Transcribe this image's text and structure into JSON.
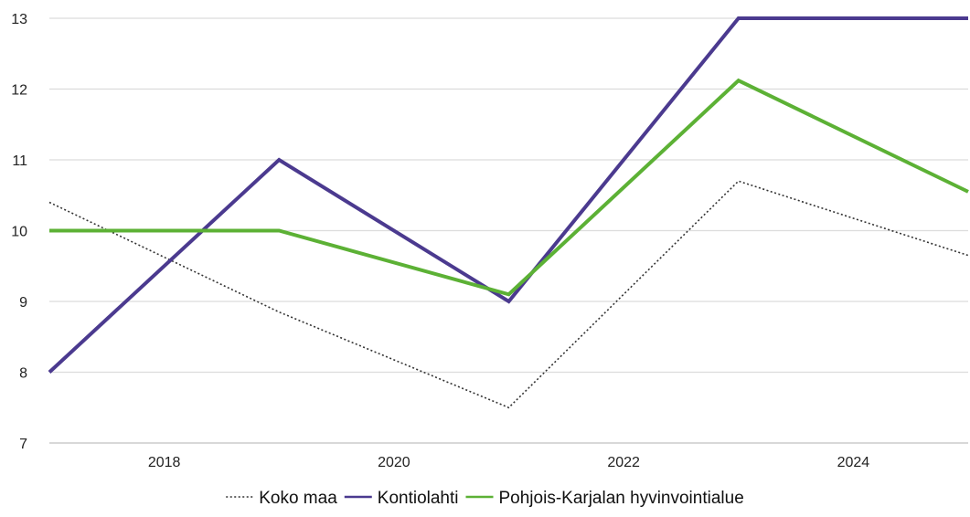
{
  "chart_data": {
    "type": "line",
    "title": "",
    "xlabel": "",
    "ylabel": "",
    "x": [
      2017,
      2019,
      2021,
      2023,
      2025
    ],
    "x_ticks": [
      "2018",
      "2020",
      "2022",
      "2024"
    ],
    "y_ticks": [
      "7",
      "8",
      "9",
      "10",
      "11",
      "12",
      "13"
    ],
    "xlim": [
      2017,
      2025
    ],
    "ylim": [
      7,
      13
    ],
    "grid": "horizontal",
    "legend_position": "bottom-center",
    "series": [
      {
        "name": "Koko maa",
        "values": [
          10.4,
          8.85,
          7.5,
          10.7,
          9.65
        ],
        "color": "#333333",
        "style": "dotted"
      },
      {
        "name": "Kontiolahti",
        "values": [
          8,
          11,
          9,
          13,
          13
        ],
        "color": "#4b3a8f",
        "style": "solid"
      },
      {
        "name": "Pohjois-Karjalan hyvinvointialue",
        "values": [
          10,
          10,
          9.1,
          12.12,
          10.55
        ],
        "color": "#5cb135",
        "style": "solid"
      }
    ]
  }
}
